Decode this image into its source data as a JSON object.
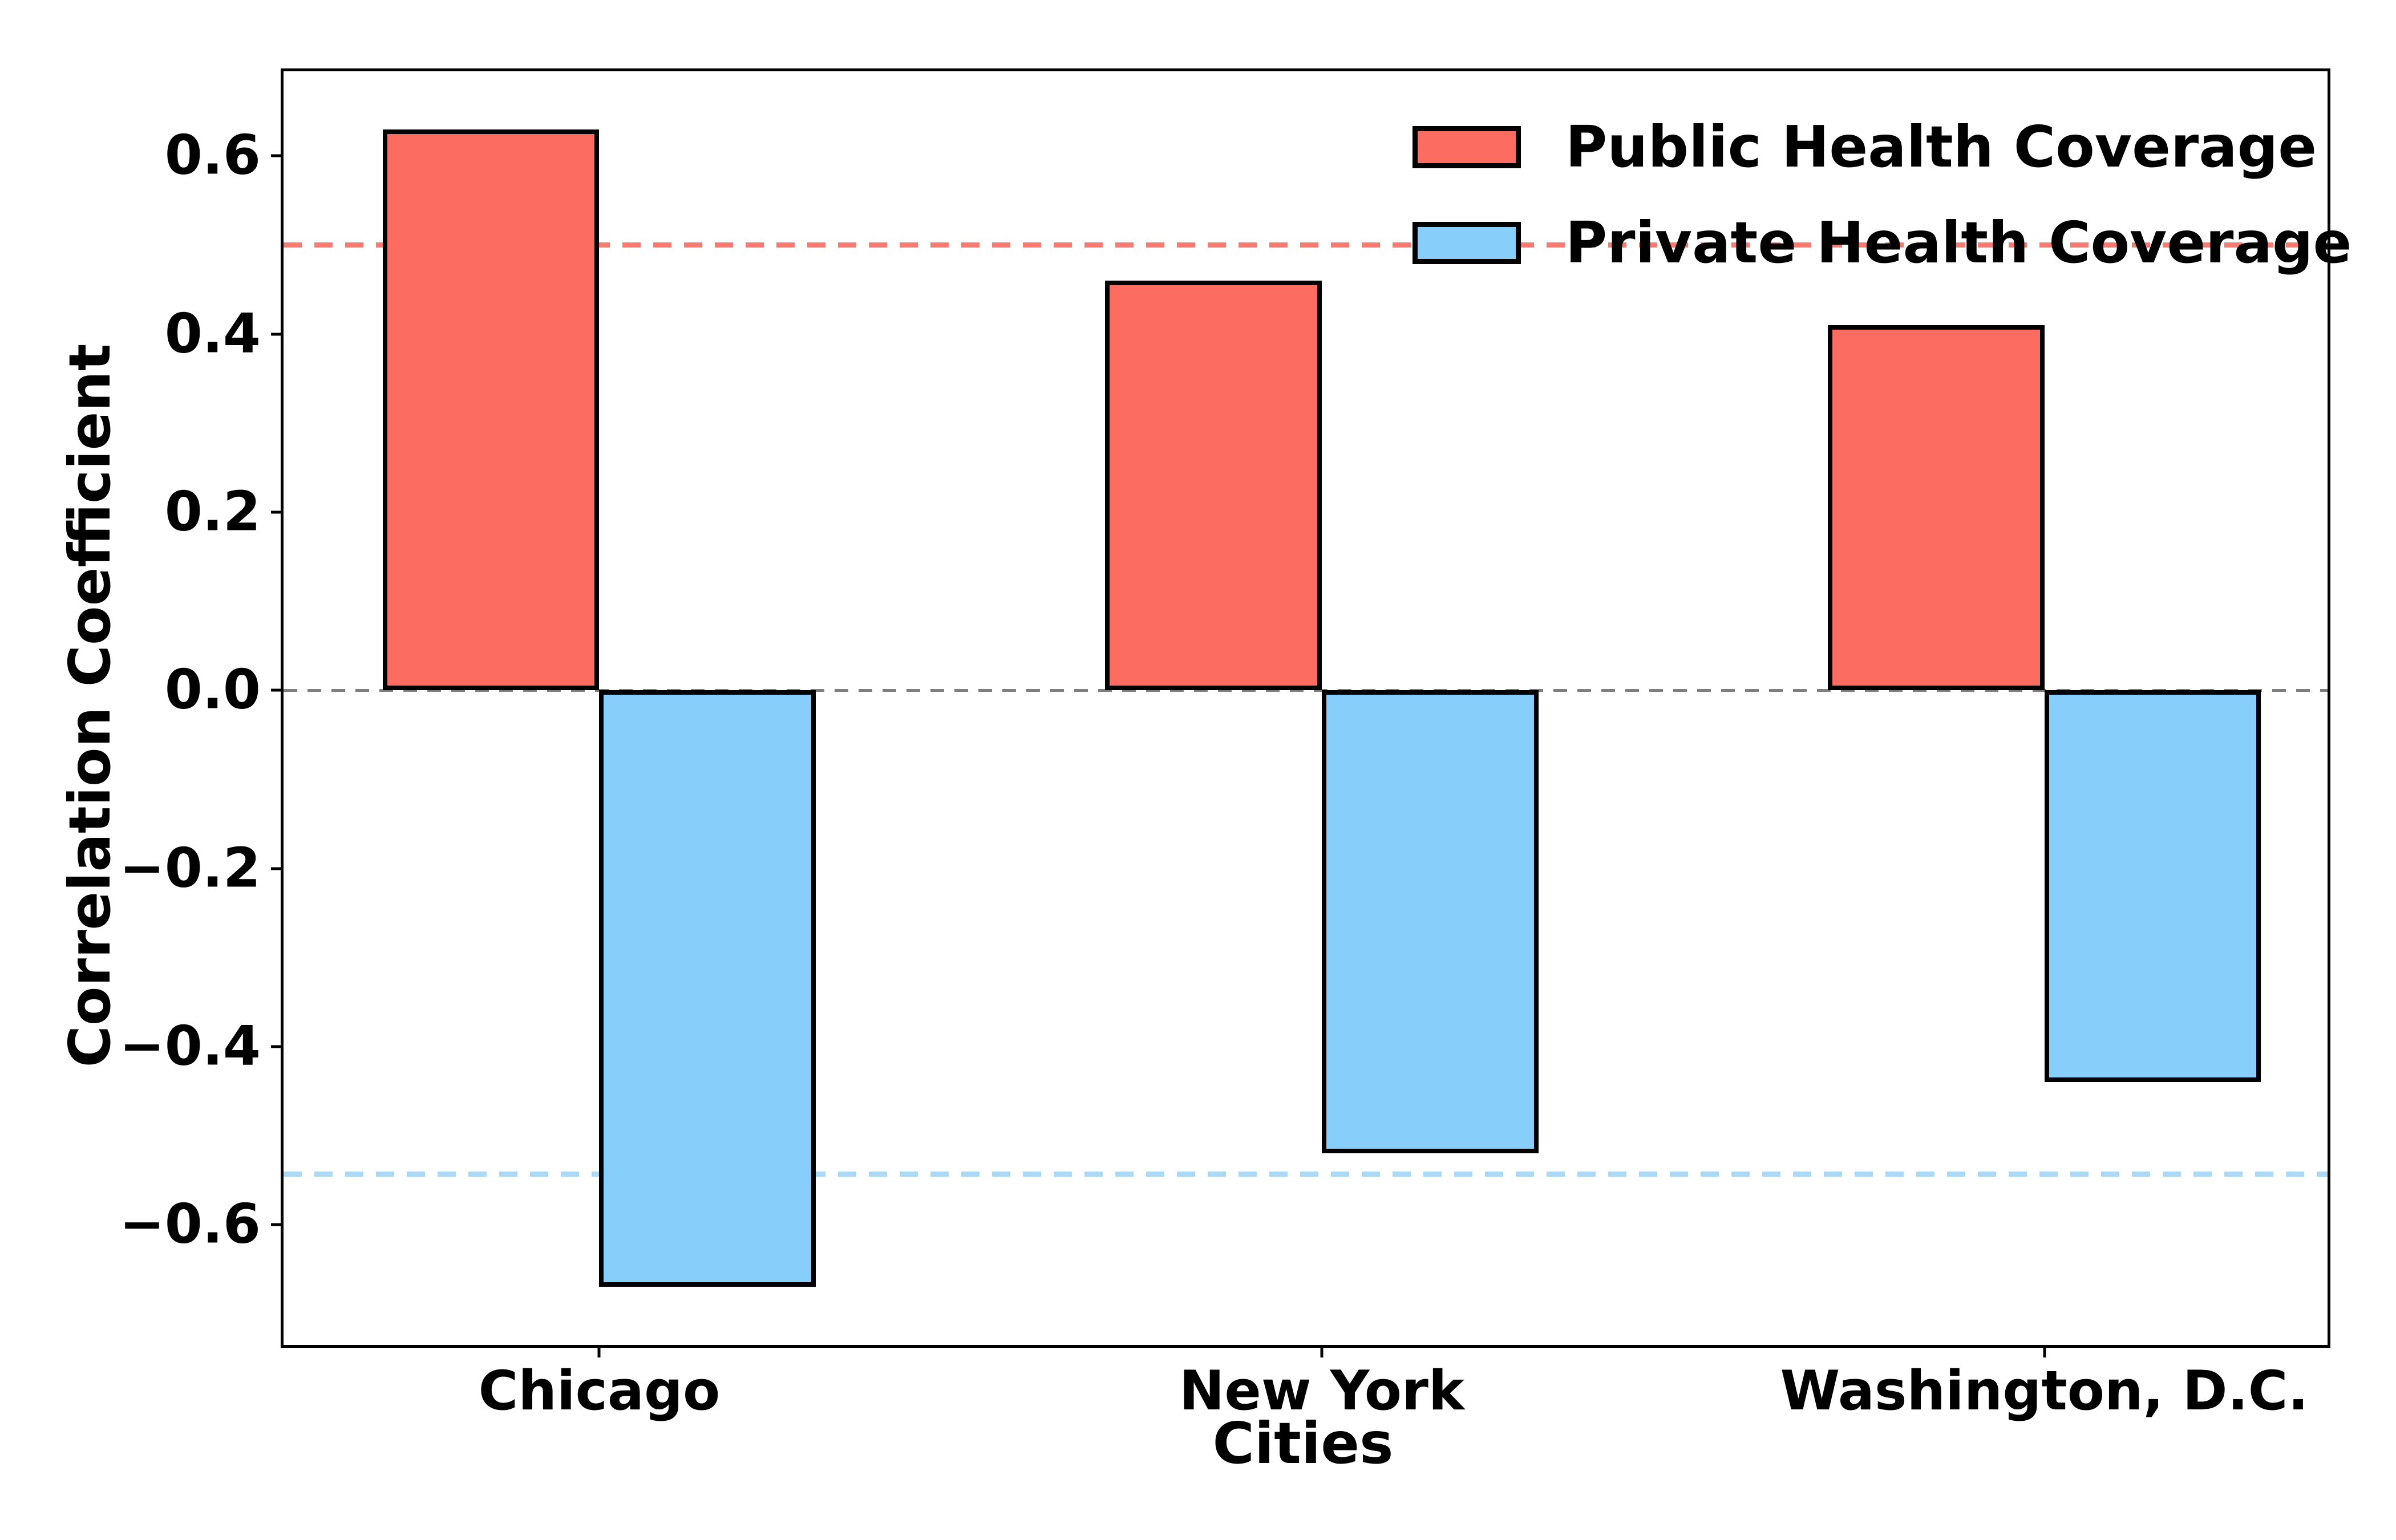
{
  "chart_data": {
    "type": "bar",
    "categories": [
      "Chicago",
      "New York",
      "Washington, D.C."
    ],
    "series": [
      {
        "name": "Public Health Coverage",
        "color": "#FC6C60",
        "values": [
          0.63,
          0.46,
          0.41
        ]
      },
      {
        "name": "Private Health Coverage",
        "color": "#87CEFA",
        "values": [
          -0.67,
          -0.52,
          -0.44
        ]
      }
    ],
    "xlabel": "Cities",
    "ylabel": "Correlation Coefficient",
    "yticks": [
      0.6,
      0.4,
      0.2,
      0.0,
      -0.2,
      -0.4,
      -0.6
    ],
    "ylim": [
      -0.735,
      0.695
    ],
    "xlim": [
      -0.437,
      2.392
    ],
    "bar_width": 0.3,
    "grid": false,
    "background": "#FFFFFF",
    "axis_color": "#000000",
    "reference_lines": [
      {
        "value": 0.0,
        "color": "#7F7F7F",
        "thickness": 5,
        "dash": 24,
        "gap": 18,
        "role": "zero-line"
      },
      {
        "value": 0.5,
        "color": "#FA7A70",
        "thickness": 9,
        "dash": 32,
        "gap": 22,
        "role": "public-mean-line"
      },
      {
        "value": -0.543,
        "color": "#ABD9F5",
        "thickness": 9,
        "dash": 32,
        "gap": 22,
        "role": "private-mean-line"
      }
    ],
    "legend": {
      "position": "upper right",
      "frame": false
    }
  }
}
